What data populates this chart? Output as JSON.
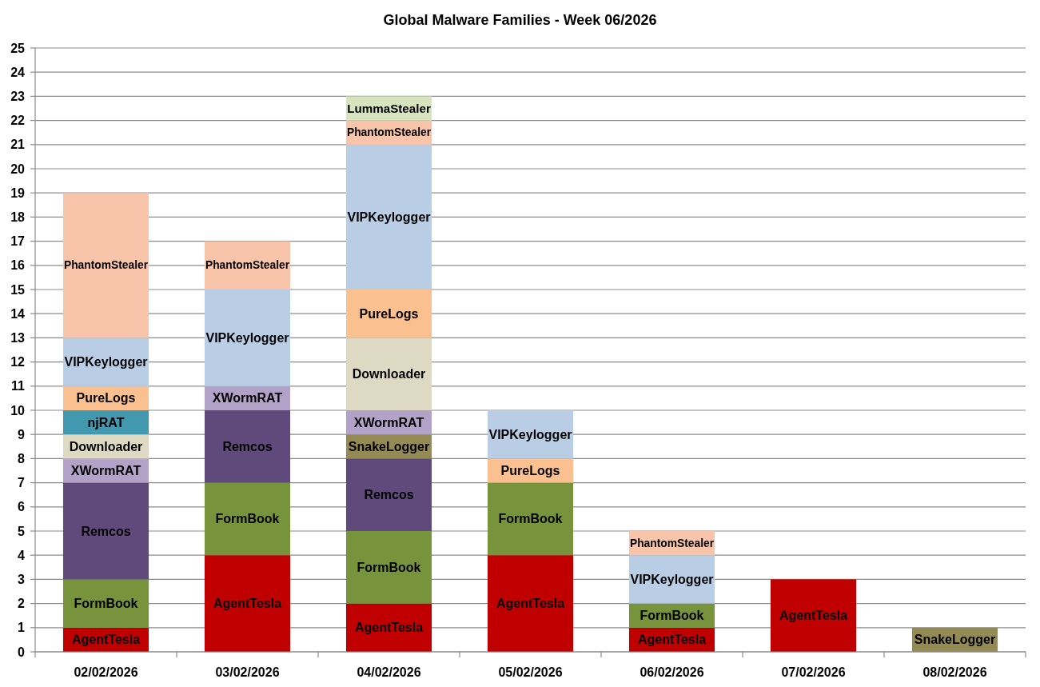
{
  "chart_data": {
    "type": "bar",
    "title": "Global Malware Families - Week 06/2026",
    "categories": [
      "02/02/2026",
      "03/02/2026",
      "04/02/2026",
      "05/02/2026",
      "06/02/2026",
      "07/02/2026",
      "08/02/2026"
    ],
    "series": [
      {
        "name": "AgentTesla",
        "color": "#c00000",
        "values": [
          1,
          4,
          2,
          4,
          1,
          3,
          null
        ]
      },
      {
        "name": "FormBook",
        "color": "#77933c",
        "values": [
          2,
          3,
          3,
          3,
          1,
          null,
          null
        ]
      },
      {
        "name": "Remcos",
        "color": "#604a7b",
        "values": [
          4,
          3,
          3,
          null,
          null,
          null,
          null
        ]
      },
      {
        "name": "SnakeLogger",
        "color": "#948a54",
        "values": [
          null,
          null,
          1,
          null,
          null,
          null,
          1
        ]
      },
      {
        "name": "XWormRAT",
        "color": "#b3a2c7",
        "values": [
          1,
          1,
          1,
          null,
          null,
          null,
          null
        ]
      },
      {
        "name": "Downloader",
        "color": "#ddd9c3",
        "values": [
          1,
          null,
          3,
          null,
          null,
          null,
          null
        ]
      },
      {
        "name": "njRAT",
        "color": "#4198af",
        "values": [
          1,
          null,
          null,
          null,
          null,
          null,
          null
        ]
      },
      {
        "name": "PureLogs",
        "color": "#fac090",
        "values": [
          1,
          null,
          2,
          1,
          null,
          null,
          null
        ]
      },
      {
        "name": "VIPKeylogger",
        "color": "#b9cde5",
        "values": [
          2,
          4,
          6,
          2,
          2,
          null,
          null
        ]
      },
      {
        "name": "PhantomStealer",
        "color": "#f8c5aa",
        "values": [
          6,
          2,
          1,
          null,
          1,
          null,
          null
        ]
      },
      {
        "name": "LummaStealer",
        "color": "#d7e4bd",
        "values": [
          null,
          null,
          1,
          null,
          null,
          null,
          null
        ]
      }
    ],
    "stacked": true,
    "ylim": [
      0,
      25
    ],
    "yticks": [
      0,
      1,
      2,
      3,
      4,
      5,
      6,
      7,
      8,
      9,
      10,
      11,
      12,
      13,
      14,
      15,
      16,
      17,
      18,
      19,
      20,
      21,
      22,
      23,
      24,
      25
    ],
    "grid": "y"
  }
}
